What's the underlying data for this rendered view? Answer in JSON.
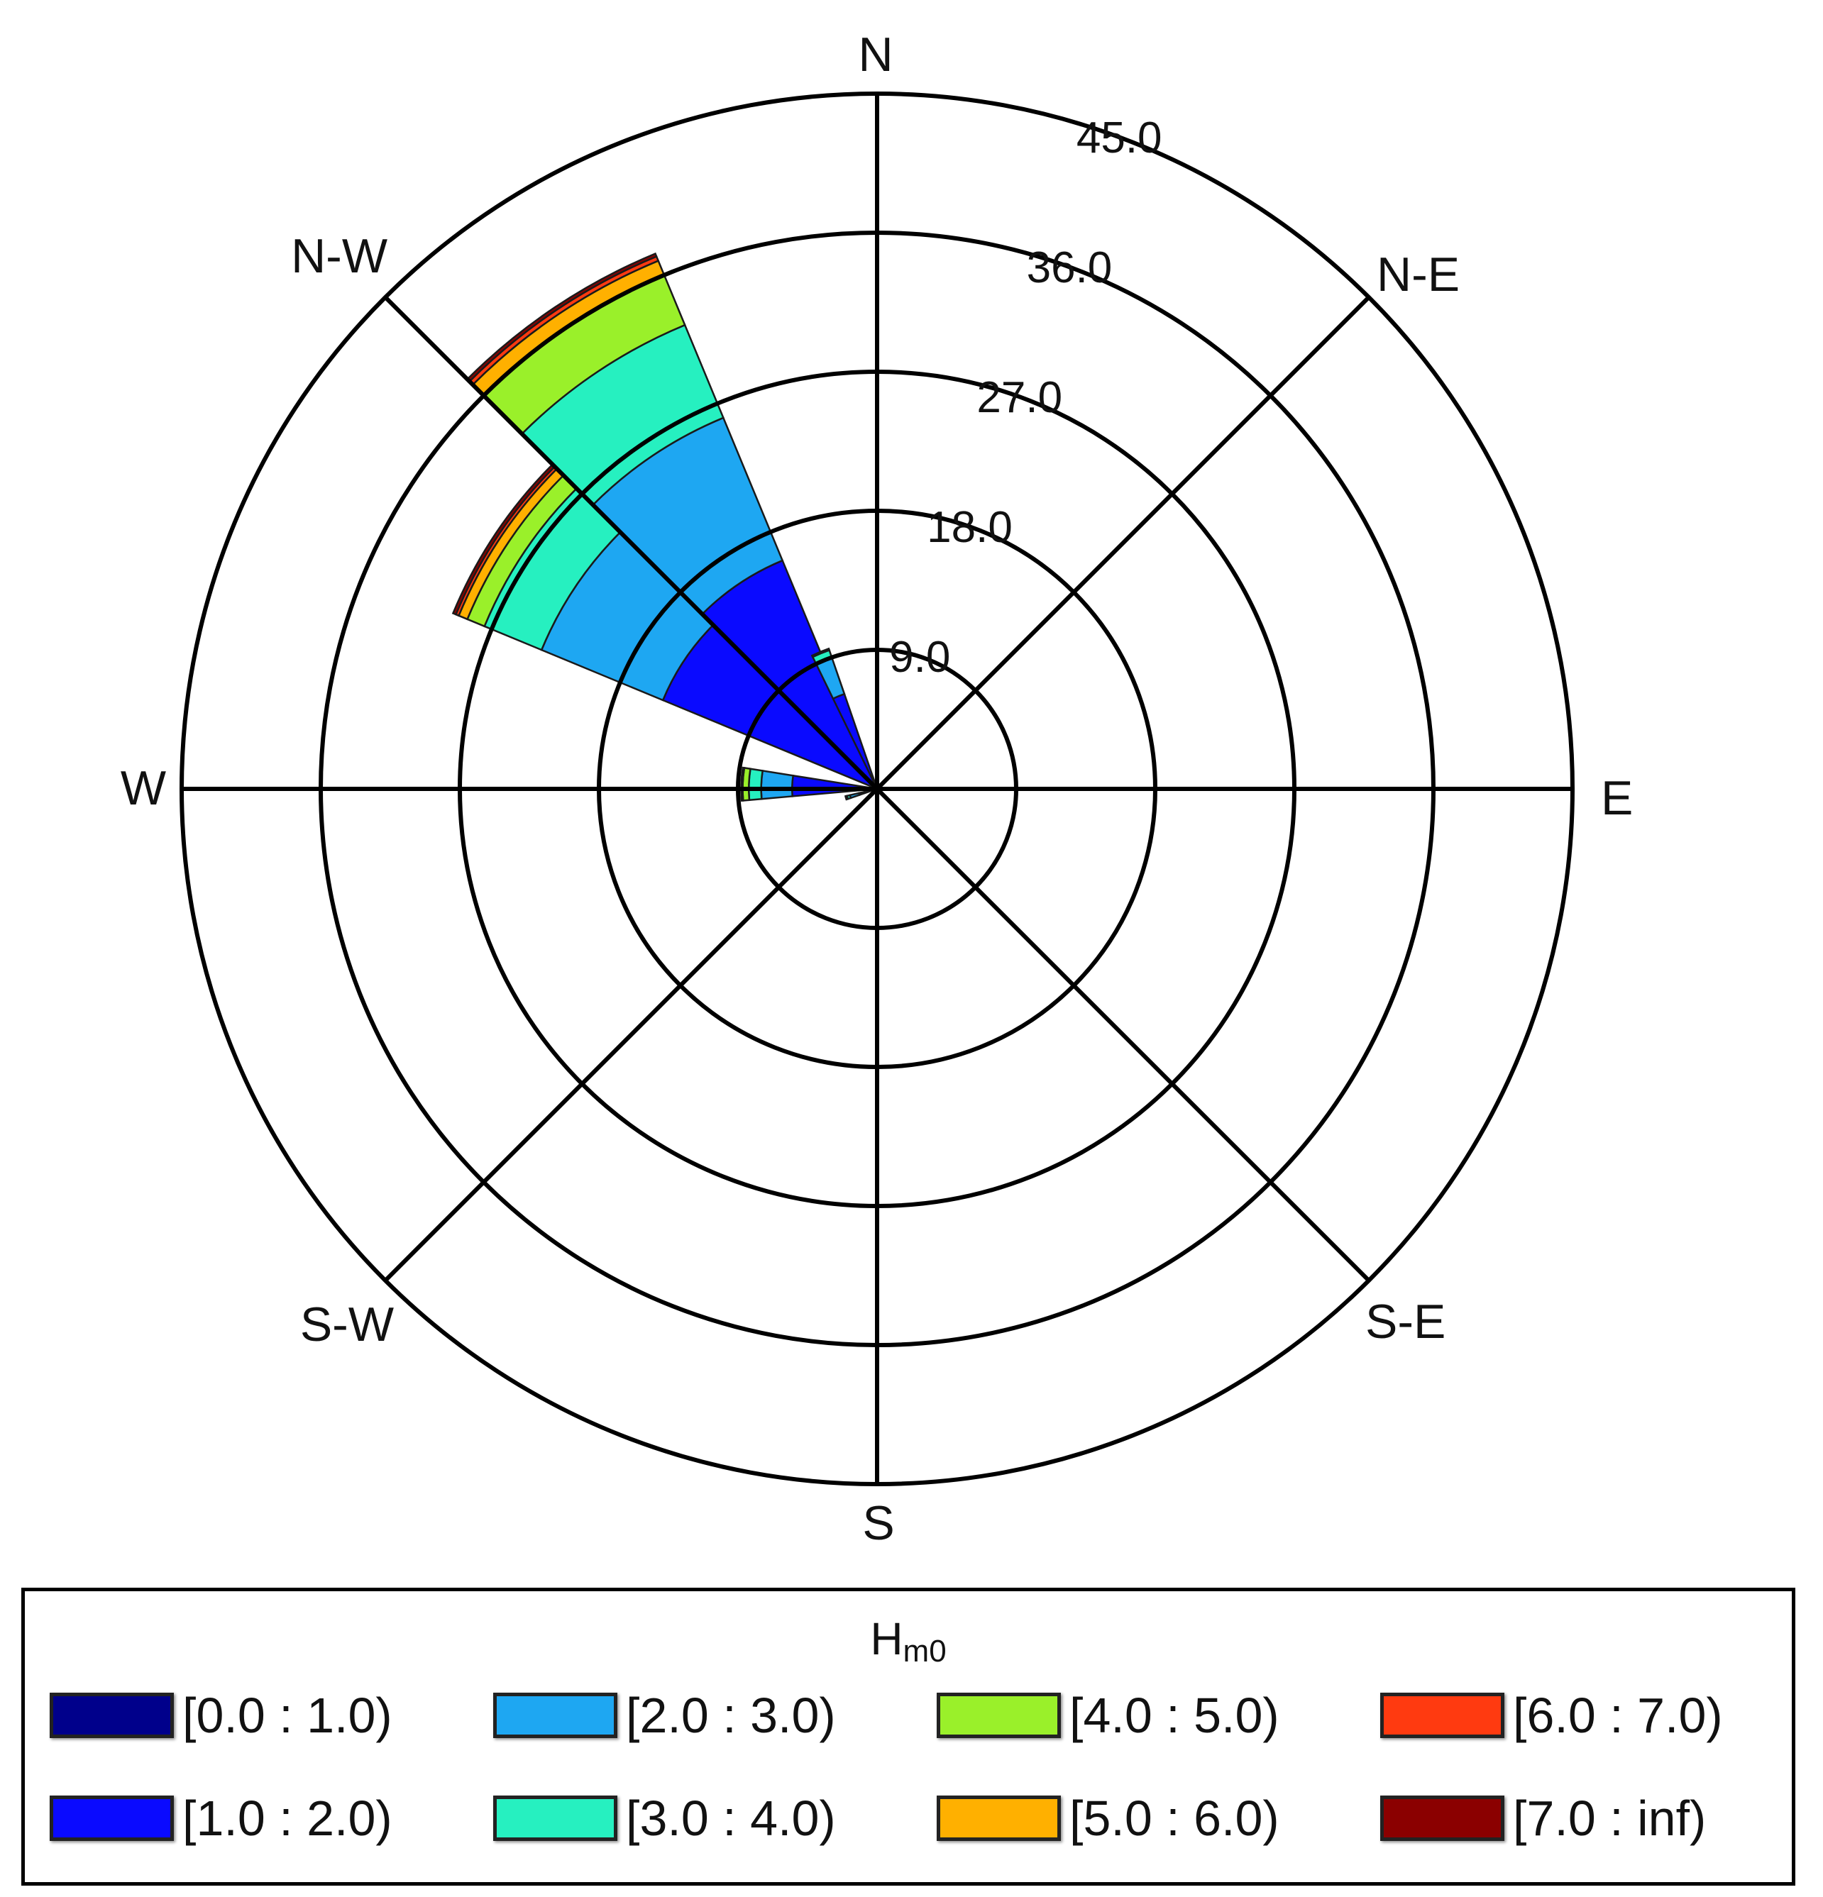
{
  "chart_data": {
    "type": "wind-rose",
    "variable_label_main": "H",
    "variable_label_sub": "m0",
    "directions": [
      "N",
      "N-E",
      "E",
      "S-E",
      "S",
      "S-W",
      "W",
      "N-W"
    ],
    "rings": [
      "9.0",
      "18.0",
      "27.0",
      "36.0",
      "45.0"
    ],
    "ring_values": [
      9,
      18,
      27,
      36,
      45
    ],
    "rmax": 45,
    "bins": [
      {
        "label": "[0.0 : 1.0)",
        "color": "#00008b"
      },
      {
        "label": "[1.0 : 2.0)",
        "color": "#0a0aff"
      },
      {
        "label": "[2.0 : 3.0)",
        "color": "#1ea7f2"
      },
      {
        "label": "[3.0 : 4.0)",
        "color": "#26f0c0"
      },
      {
        "label": "[4.0 : 5.0)",
        "color": "#9af02a"
      },
      {
        "label": "[5.0 : 6.0)",
        "color": "#ffb000"
      },
      {
        "label": "[6.0 : 7.0)",
        "color": "#ff3a10"
      },
      {
        "label": "[7.0 : inf)",
        "color": "#8b0000"
      }
    ],
    "sectors": [
      {
        "center_deg": 326.25,
        "width_deg": 22.5,
        "cumulative": [
          0.2,
          16.0,
          26.0,
          32.5,
          36.0,
          37.0,
          37.3,
          37.5
        ]
      },
      {
        "center_deg": 303.75,
        "width_deg": 22.5,
        "cumulative": [
          0.2,
          15.0,
          23.5,
          27.5,
          28.7,
          29.3,
          29.5,
          29.7
        ]
      },
      {
        "center_deg": 337.5,
        "width_deg": 7.0,
        "cumulative": [
          0.2,
          6.5,
          9.0,
          9.5,
          9.6,
          9.6,
          9.6,
          9.6
        ]
      },
      {
        "center_deg": 272.0,
        "width_deg": 14.0,
        "cumulative": [
          0.1,
          5.5,
          7.5,
          8.3,
          8.7,
          8.8,
          8.8,
          8.8
        ]
      },
      {
        "center_deg": 254.0,
        "width_deg": 6.0,
        "cumulative": [
          0.1,
          1.2,
          1.8,
          2.0,
          2.1,
          2.1,
          2.1,
          2.1
        ]
      }
    ]
  }
}
